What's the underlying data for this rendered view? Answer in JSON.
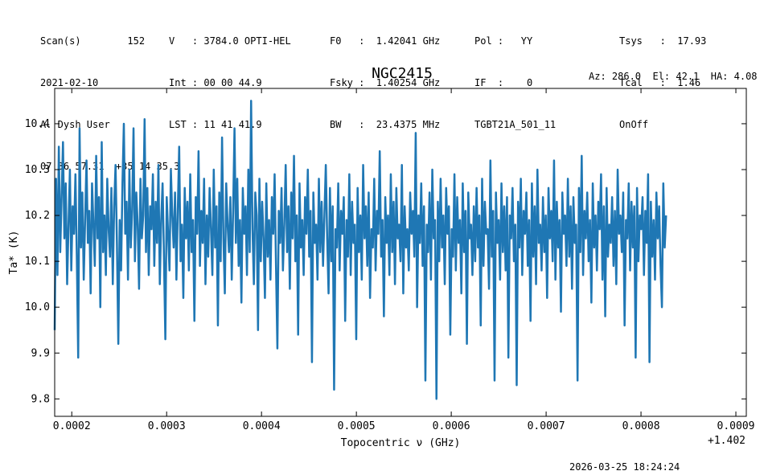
{
  "header": {
    "c1": [
      "Scan(s)        152",
      "2021-02-10",
      "A. Dysh User",
      "07 36 57.31  +35 14 35.3"
    ],
    "c2": [
      "V   : 3784.0 OPTI-HEL",
      "Int : 00 00 44.9",
      "LST : 11 41 41.9"
    ],
    "c3": [
      "F0   :  1.42041 GHz",
      "Fsky :  1.40254 GHz",
      "BW   :  23.4375 MHz"
    ],
    "c4": [
      "Pol :   YY",
      "IF  :    0",
      "TGBT21A_501_11"
    ],
    "c5": [
      "Tsys   :  17.93",
      "Tcal   :  1.46",
      "OnOff"
    ],
    "azel": "Az: 286.0  El: 42.1  HA: 4.08"
  },
  "footer": {
    "timestamp": "2026-03-25 18:24:24"
  },
  "chart_data": {
    "type": "line",
    "title": "NGC2415",
    "xlabel": "Topocentric ν (GHz)",
    "ylabel": "Ta* (K)",
    "x_offset_label": "+1.402",
    "xlim": [
      0.000182,
      0.000911
    ],
    "ylim": [
      9.762,
      10.477
    ],
    "xticks": [
      0.0002,
      0.0003,
      0.0004,
      0.0005,
      0.0006,
      0.0007,
      0.0008,
      0.0009
    ],
    "xtick_labels": [
      "0.0002",
      "0.0003",
      "0.0004",
      "0.0005",
      "0.0006",
      "0.0007",
      "0.0008",
      "0.0009"
    ],
    "yticks": [
      9.8,
      9.9,
      10.0,
      10.1,
      10.2,
      10.3,
      10.4
    ],
    "ytick_labels": [
      "9.8",
      "9.9",
      "10.0",
      "10.1",
      "10.2",
      "10.3",
      "10.4"
    ],
    "color": "#1f77b4",
    "series": [
      {
        "x_start": 0.000182,
        "x_step": 1.458e-06,
        "values": [
          9.95,
          10.28,
          10.07,
          10.35,
          10.12,
          10.24,
          10.36,
          10.15,
          10.27,
          10.05,
          10.18,
          10.3,
          10.08,
          10.22,
          10.16,
          10.29,
          10.11,
          9.89,
          10.39,
          10.13,
          10.25,
          10.06,
          10.19,
          10.32,
          10.14,
          10.21,
          10.03,
          10.27,
          10.18,
          10.09,
          10.33,
          10.15,
          10.24,
          10.0,
          10.36,
          10.12,
          10.2,
          10.07,
          10.28,
          10.17,
          10.11,
          10.26,
          10.05,
          10.22,
          10.31,
          10.14,
          9.92,
          10.19,
          10.08,
          10.27,
          10.4,
          10.16,
          10.23,
          10.06,
          10.3,
          10.13,
          10.21,
          10.39,
          10.1,
          10.25,
          10.18,
          10.04,
          10.28,
          10.15,
          10.2,
          10.41,
          10.12,
          10.26,
          10.07,
          10.22,
          10.17,
          10.29,
          10.09,
          10.23,
          10.14,
          10.31,
          10.05,
          10.19,
          10.27,
          10.11,
          9.93,
          10.24,
          10.16,
          10.08,
          10.3,
          10.2,
          10.13,
          10.25,
          10.06,
          10.21,
          10.35,
          10.1,
          10.18,
          10.02,
          10.26,
          10.15,
          10.23,
          10.08,
          10.29,
          10.12,
          10.19,
          9.97,
          10.24,
          10.16,
          10.34,
          10.09,
          10.21,
          10.14,
          10.28,
          10.05,
          10.2,
          10.11,
          10.26,
          10.17,
          10.07,
          10.3,
          10.13,
          10.22,
          9.96,
          10.25,
          10.1,
          10.37,
          10.15,
          10.03,
          10.27,
          10.18,
          10.12,
          10.24,
          10.06,
          10.21,
          10.39,
          10.14,
          10.28,
          10.09,
          10.19,
          10.01,
          10.26,
          10.16,
          10.22,
          10.07,
          10.3,
          10.12,
          10.45,
          10.17,
          10.05,
          10.25,
          10.2,
          9.95,
          10.28,
          10.1,
          10.23,
          10.15,
          10.02,
          10.27,
          10.11,
          10.19,
          10.06,
          10.24,
          10.16,
          10.29,
          10.09,
          9.91,
          10.21,
          10.14,
          10.26,
          10.08,
          10.18,
          10.31,
          10.12,
          10.22,
          10.04,
          10.25,
          10.15,
          10.33,
          10.1,
          10.2,
          9.94,
          10.27,
          10.13,
          10.19,
          10.07,
          10.24,
          10.16,
          10.3,
          10.11,
          10.21,
          9.88,
          10.25,
          10.14,
          10.18,
          10.06,
          10.28,
          10.12,
          10.23,
          10.09,
          10.2,
          10.31,
          10.15,
          10.03,
          10.26,
          10.1,
          10.22,
          9.82,
          10.17,
          10.13,
          10.27,
          10.08,
          10.21,
          10.16,
          10.24,
          9.97,
          10.19,
          10.11,
          10.29,
          10.07,
          10.23,
          10.14,
          10.18,
          9.93,
          10.26,
          10.12,
          10.2,
          10.06,
          10.31,
          10.15,
          10.22,
          10.09,
          10.25,
          10.02,
          10.17,
          10.13,
          10.28,
          10.08,
          10.21,
          10.16,
          10.34,
          10.11,
          10.19,
          9.98,
          10.24,
          10.14,
          10.2,
          10.07,
          10.29,
          10.12,
          10.23,
          10.05,
          10.26,
          10.15,
          10.18,
          10.1,
          10.31,
          10.03,
          10.22,
          10.13,
          10.17,
          10.08,
          10.25,
          10.16,
          10.21,
          10.11,
          10.38,
          10.0,
          10.2,
          10.14,
          10.27,
          10.09,
          10.22,
          9.84,
          10.18,
          10.12,
          10.25,
          10.06,
          10.3,
          10.15,
          10.19,
          9.8,
          10.23,
          10.1,
          10.28,
          10.13,
          10.2,
          10.05,
          10.26,
          10.16,
          10.22,
          9.94,
          10.17,
          10.11,
          10.29,
          10.08,
          10.24,
          10.14,
          10.19,
          10.03,
          10.27,
          10.12,
          10.21,
          9.92,
          10.25,
          10.15,
          10.18,
          10.07,
          10.22,
          10.1,
          10.26,
          10.13,
          10.2,
          9.96,
          10.28,
          10.09,
          10.23,
          10.16,
          10.17,
          10.04,
          10.32,
          10.11,
          10.21,
          9.84,
          10.25,
          10.14,
          10.19,
          10.06,
          10.27,
          10.12,
          10.22,
          10.08,
          10.24,
          9.89,
          10.2,
          10.15,
          10.26,
          10.1,
          10.18,
          9.83,
          10.23,
          10.13,
          10.28,
          10.07,
          10.21,
          10.16,
          10.25,
          10.09,
          10.19,
          9.97,
          10.27,
          10.11,
          10.22,
          10.05,
          10.3,
          10.14,
          10.18,
          10.08,
          10.24,
          10.12,
          10.2,
          10.02,
          10.26,
          10.15,
          10.21,
          10.1,
          10.32,
          10.06,
          10.23,
          10.13,
          10.19,
          9.99,
          10.25,
          10.16,
          10.2,
          10.09,
          10.28,
          10.11,
          10.22,
          10.04,
          10.24,
          10.14,
          10.18,
          9.84,
          10.26,
          10.12,
          10.33,
          10.07,
          10.21,
          10.15,
          10.25,
          10.1,
          10.19,
          10.01,
          10.27,
          10.13,
          10.2,
          10.08,
          10.23,
          10.17,
          10.29,
          10.06,
          10.22,
          9.98,
          10.26,
          10.11,
          10.18,
          10.14,
          10.24,
          10.09,
          10.21,
          10.05,
          10.3,
          10.16,
          10.2,
          10.12,
          10.25,
          9.96,
          10.19,
          10.15,
          10.27,
          10.08,
          10.23,
          10.13,
          10.22,
          9.89,
          10.26,
          10.1,
          10.2,
          10.17,
          10.24,
          10.07,
          10.21,
          10.14,
          10.29,
          9.88,
          10.23,
          10.11,
          10.19,
          10.06,
          10.25,
          10.15,
          10.22,
          10.09,
          10.0,
          10.27,
          10.13,
          10.2
        ]
      }
    ]
  }
}
